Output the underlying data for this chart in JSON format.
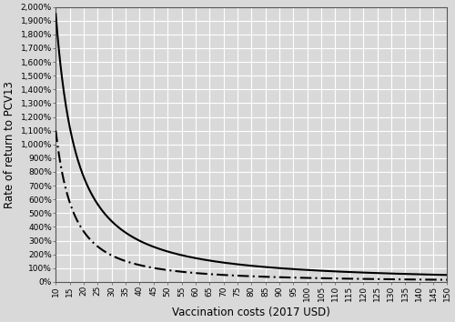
{
  "x_start": 10,
  "x_end": 150,
  "x_ticks": [
    10,
    15,
    20,
    25,
    30,
    35,
    40,
    45,
    50,
    55,
    60,
    65,
    70,
    75,
    80,
    85,
    90,
    95,
    100,
    105,
    110,
    115,
    120,
    125,
    130,
    135,
    140,
    145,
    150
  ],
  "y_ticks_pct": [
    0,
    100,
    200,
    300,
    400,
    500,
    600,
    700,
    800,
    900,
    1000,
    1100,
    1200,
    1300,
    1400,
    1500,
    1600,
    1700,
    1800,
    1900,
    2000
  ],
  "solid_a": 19.5,
  "solid_b": 0.092,
  "dashed_a": 11.0,
  "dashed_b": 0.092,
  "xlabel": "Vaccination costs (2017 USD)",
  "ylabel": "Rate of return to PCV13",
  "background_color": "#d9d9d9",
  "grid_color": "#ffffff",
  "line_color": "#000000",
  "axis_label_fontsize": 8.5,
  "tick_fontsize": 6.5
}
